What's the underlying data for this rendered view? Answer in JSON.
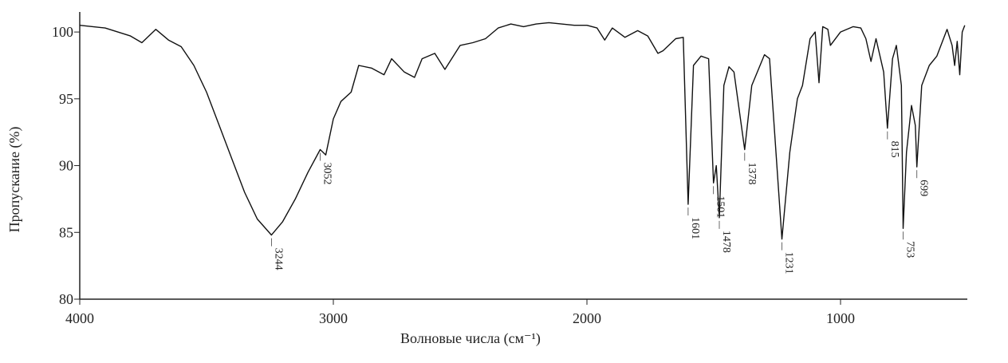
{
  "chart_data": {
    "type": "line",
    "xlabel": "Волновые числа (см⁻¹)",
    "ylabel": "Пропускание (%)",
    "color": "#111111",
    "ylabel_color": "#8a4536",
    "xlim": [
      4000,
      500
    ],
    "ylim": [
      80,
      101.5
    ],
    "xticks": [
      4000,
      3000,
      2000,
      1000
    ],
    "yticks": [
      80,
      85,
      90,
      95,
      100
    ],
    "x": [
      4000,
      3900,
      3800,
      3755,
      3700,
      3650,
      3600,
      3550,
      3500,
      3450,
      3400,
      3350,
      3300,
      3244,
      3200,
      3150,
      3100,
      3052,
      3030,
      3000,
      2970,
      2930,
      2900,
      2850,
      2800,
      2770,
      2720,
      2680,
      2650,
      2600,
      2560,
      2500,
      2450,
      2400,
      2350,
      2300,
      2250,
      2200,
      2150,
      2100,
      2050,
      2000,
      1960,
      1930,
      1900,
      1850,
      1800,
      1760,
      1720,
      1700,
      1650,
      1620,
      1601,
      1580,
      1550,
      1520,
      1501,
      1490,
      1478,
      1460,
      1440,
      1420,
      1378,
      1350,
      1300,
      1280,
      1231,
      1200,
      1170,
      1150,
      1120,
      1100,
      1085,
      1070,
      1050,
      1040,
      1000,
      950,
      920,
      900,
      880,
      860,
      830,
      815,
      795,
      780,
      760,
      753,
      740,
      720,
      705,
      699,
      680,
      650,
      620,
      600,
      580,
      560,
      550,
      540,
      530,
      520,
      510
    ],
    "values": [
      100.5,
      100.3,
      99.7,
      99.2,
      100.2,
      99.4,
      98.9,
      97.5,
      95.5,
      93,
      90.5,
      88,
      86,
      84.8,
      85.8,
      87.5,
      89.5,
      91.2,
      90.8,
      93.5,
      94.8,
      95.5,
      97.5,
      97.3,
      96.8,
      98,
      97,
      96.6,
      98,
      98.4,
      97.2,
      99,
      99.2,
      99.5,
      100.3,
      100.6,
      100.4,
      100.6,
      100.7,
      100.6,
      100.5,
      100.5,
      100.3,
      99.4,
      100.3,
      99.6,
      100.1,
      99.7,
      98.4,
      98.6,
      99.5,
      99.6,
      87.1,
      97.5,
      98.2,
      98,
      88.7,
      90,
      86.1,
      96,
      97.4,
      97,
      91.2,
      96,
      98.3,
      98,
      84.5,
      91,
      95,
      96,
      99.5,
      100,
      96.2,
      100.4,
      100.2,
      99,
      100,
      100.4,
      100.3,
      99.5,
      97.8,
      99.5,
      97,
      92.8,
      98,
      99,
      96,
      85.3,
      91,
      94.5,
      93,
      89.9,
      96,
      97.5,
      98.2,
      99.2,
      100.2,
      99,
      97.5,
      99.3,
      96.8,
      100,
      100.5
    ],
    "peak_labels": [
      3244,
      3052,
      1601,
      1501,
      1478,
      1378,
      1231,
      815,
      753,
      699
    ]
  }
}
